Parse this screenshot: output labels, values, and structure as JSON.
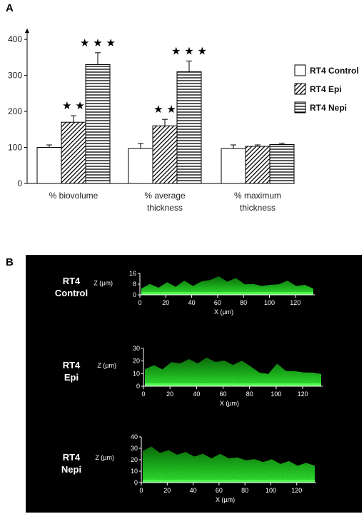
{
  "panel_a_letter": "A",
  "panel_b_letter": "B",
  "chart_data": [
    {
      "type": "bar",
      "categories": [
        "% biovolume",
        "% average thickness",
        "% maximum thickness"
      ],
      "category_lines": [
        [
          "% biovolume"
        ],
        [
          "% average",
          "thickness"
        ],
        [
          "% maximum",
          "thickness"
        ]
      ],
      "series": [
        {
          "name": "RT4 Control",
          "values": [
            100,
            97,
            97
          ],
          "errors": [
            7,
            14,
            10
          ],
          "pattern": "plain",
          "stars": [
            "",
            "",
            ""
          ]
        },
        {
          "name": "RT4 Epi",
          "values": [
            170,
            160,
            103
          ],
          "errors": [
            18,
            18,
            4
          ],
          "pattern": "diag",
          "stars": [
            "★ ★",
            "★ ★",
            ""
          ]
        },
        {
          "name": "RT4 Nepi",
          "values": [
            330,
            310,
            108
          ],
          "errors": [
            33,
            30,
            4
          ],
          "pattern": "horiz",
          "stars": [
            "★ ★ ★",
            "★ ★ ★",
            ""
          ]
        }
      ],
      "ylim": [
        0,
        430
      ],
      "yticks": [
        0,
        100,
        200,
        300,
        400
      ],
      "legend_position": "right",
      "grid": false
    }
  ],
  "confocal": {
    "x_label": "X (µm)",
    "z_label": "Z (µm)",
    "x_ticks": [
      "0",
      "20",
      "40",
      "60",
      "80",
      "100",
      "120"
    ],
    "panels": [
      {
        "label_lines": [
          "RT4",
          "Control"
        ],
        "z_ticks": [
          "0",
          "8",
          "16"
        ]
      },
      {
        "label_lines": [
          "RT4",
          "Epi"
        ],
        "z_ticks": [
          "0",
          "10",
          "20",
          "30"
        ]
      },
      {
        "label_lines": [
          "RT4",
          "Nepi"
        ],
        "z_ticks": [
          "0",
          "10",
          "20",
          "30",
          "40"
        ]
      }
    ]
  }
}
